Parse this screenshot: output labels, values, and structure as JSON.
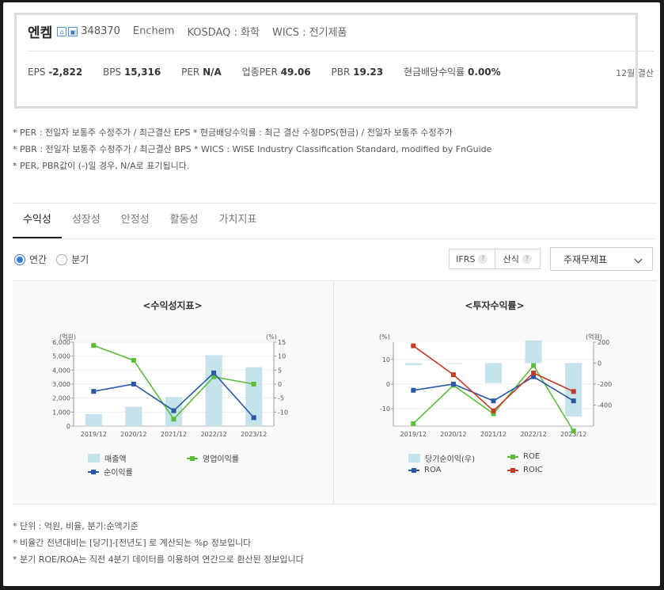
{
  "company": {
    "name": "엔켐",
    "code": "348370",
    "english": "Enchem",
    "market": "KOSDAQ : 화학",
    "wics": "WICS : 전기제품",
    "icons": [
      "home-icon",
      "building-icon"
    ]
  },
  "stats": [
    {
      "label": "EPS",
      "value": "-2,822"
    },
    {
      "label": "BPS",
      "value": "15,316"
    },
    {
      "label": "PER",
      "value": "N/A"
    },
    {
      "label": "업종PER",
      "value": "49.06"
    },
    {
      "label": "PBR",
      "value": "19.23"
    },
    {
      "label": "현금배당수익률",
      "value": "0.00%"
    }
  ],
  "settlement": "12월 결산",
  "notes_top": [
    "* PER : 전일자 보통주 수정주가 / 최근결산 EPS * 현금배당수익률 : 최근 결산 수정DPS(현금) / 전일자 보통주 수정주가",
    "* PBR : 전일자 보통주 수정주가 / 최근결산 BPS * WICS : WISE Industry Classification Standard, modified by FnGuide",
    "* PER, PBR값이 (-)일 경우, N/A로 표기됩니다."
  ],
  "tabs": [
    "수익성",
    "성장성",
    "안정성",
    "활동성",
    "가치지표"
  ],
  "period": {
    "annual": "연간",
    "quarter": "분기"
  },
  "controls": {
    "ifrs": "IFRS",
    "calc": "산식",
    "help": "?",
    "select": "주재무제표"
  },
  "colors": {
    "bar": "#c6e2ea",
    "green": "#5bbd3a",
    "blue": "#2a58a8",
    "red": "#c83a28"
  },
  "chart_data": [
    {
      "type": "bar+line",
      "title": "<수익성지표>",
      "left_unit": "(억원)",
      "right_unit": "(%)",
      "categories": [
        "2019/12",
        "2020/12",
        "2021/12",
        "2022/12",
        "2023/12"
      ],
      "left_ticks": [
        "6,000",
        "5,000",
        "4,000",
        "3,000",
        "2,000",
        "1,000",
        "0"
      ],
      "right_ticks": [
        "15",
        "10",
        "5",
        "0",
        "-5",
        "-10"
      ],
      "ylim_left": [
        0,
        6000
      ],
      "ylim_right": [
        -15,
        15
      ],
      "series": [
        {
          "name": "매출액",
          "kind": "bar",
          "axis": "left",
          "values": [
            860,
            1380,
            2080,
            5070,
            4210
          ]
        },
        {
          "name": "영업이익률",
          "kind": "line",
          "axis": "right",
          "color": "green",
          "values": [
            13.8,
            8.5,
            -12.5,
            2.6,
            0.0
          ]
        },
        {
          "name": "순이익률",
          "kind": "line",
          "axis": "right",
          "color": "blue",
          "values": [
            -2.6,
            0.0,
            -9.5,
            4.0,
            -12.0
          ]
        }
      ]
    },
    {
      "type": "bar+line",
      "title": "<투자수익률>",
      "left_unit": "(%)",
      "right_unit": "(억원)",
      "categories": [
        "2019/12",
        "2020/12",
        "2021/12",
        "2022/12",
        "2023/12"
      ],
      "left_ticks": [
        "10",
        "0",
        "-10"
      ],
      "right_ticks": [
        "200",
        "0",
        "-200",
        "-400"
      ],
      "ylim_left": [
        -17,
        17
      ],
      "ylim_right": [
        -600,
        200
      ],
      "series": [
        {
          "name": "당기순이익(우)",
          "kind": "bar",
          "axis": "right",
          "values": [
            -20,
            -5,
            -190,
            215,
            -510
          ]
        },
        {
          "name": "ROE",
          "kind": "line",
          "axis": "left",
          "color": "green",
          "values": [
            -16.0,
            -0.5,
            -12.0,
            7.5,
            -19.0
          ]
        },
        {
          "name": "ROA",
          "kind": "line",
          "axis": "left",
          "color": "blue",
          "values": [
            -2.5,
            0.0,
            -6.8,
            3.0,
            -6.8
          ]
        },
        {
          "name": "ROIC",
          "kind": "line",
          "axis": "left",
          "color": "red",
          "values": [
            15.5,
            3.8,
            -10.8,
            4.5,
            -3.0
          ]
        }
      ]
    }
  ],
  "notes_bottom": [
    "* 단위 : 억원, 비율, 분기:순액기준",
    "* 비율간 전년대비는 [당기]-[전년도] 로 계산되는 %p 정보입니다",
    "* 분기 ROE/ROA는 직전 4분기 데이터를 이용하여 연간으로 환산된 정보입니다"
  ]
}
